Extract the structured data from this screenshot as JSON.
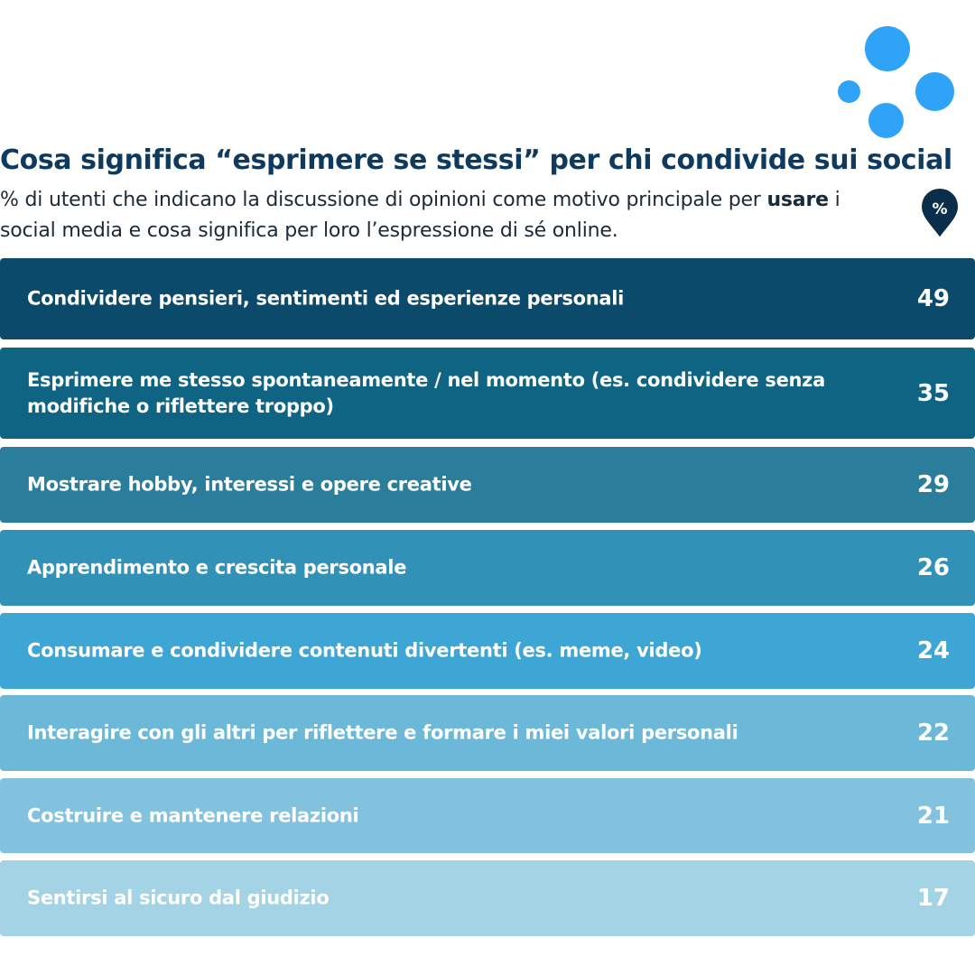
{
  "header": {
    "title": "Cosa significa “esprimere se stessi” per chi condivide sui social",
    "subtitle_part1": "% di utenti che indicano la discussione di opinioni come motivo principale per ",
    "subtitle_bold": "usare",
    "subtitle_part2": " i social media e cosa significa per loro l’espressione di sé online.",
    "badge_text": "%"
  },
  "decoration": {
    "dot_color": "#2ea3f7",
    "badge_color": "#0b2f4a"
  },
  "colors": {
    "title": "#0f3a5f",
    "bars": [
      "#0b4a6b",
      "#0f6484",
      "#2a7e9c",
      "#3291b7",
      "#3ea6d4",
      "#6cb8d8",
      "#83c2df",
      "#a3d3e5"
    ]
  },
  "chart_data": {
    "type": "bar",
    "unit": "%",
    "categories": [
      "Condividere pensieri, sentimenti ed esperienze personali",
      "Esprimere me stesso spontaneamente / nel momento (es. condividere senza modifiche o riflettere troppo)",
      "Mostrare hobby, interessi e opere creative",
      "Apprendimento e crescita personale",
      "Consumare e condividere contenuti divertenti (es. meme, video)",
      "Interagire con gli altri per riflettere e formare i miei valori personali",
      "Costruire e mantenere relazioni",
      "Sentirsi al sicuro dal giudizio"
    ],
    "values": [
      49,
      35,
      29,
      26,
      24,
      22,
      21,
      17
    ],
    "value_labels": [
      "49",
      "35",
      "29",
      "26",
      "24",
      "22",
      "21",
      "17"
    ]
  }
}
